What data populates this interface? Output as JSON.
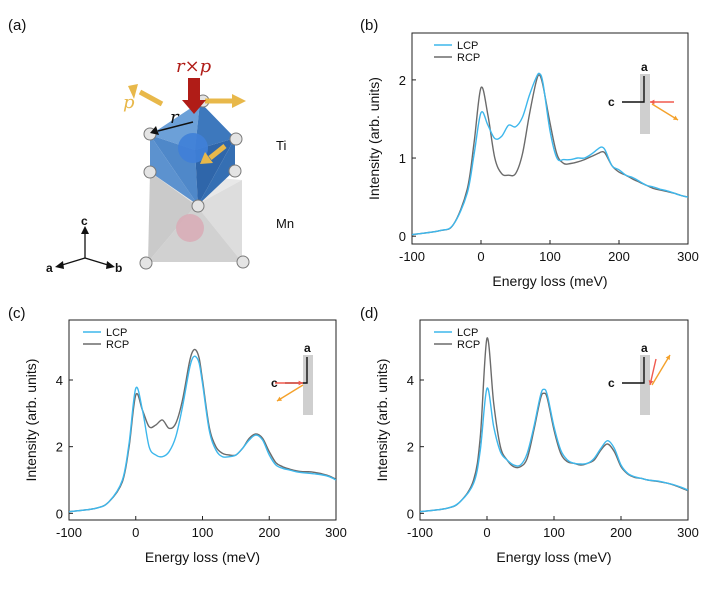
{
  "panel_a": {
    "label": "(a)",
    "vector_r_cross_p": "r×p",
    "vector_p": "p",
    "vector_r": "r",
    "atom_ti": "Ti",
    "atom_mn": "Mn",
    "axis_c": "c",
    "axis_a": "a",
    "axis_b": "b",
    "colors": {
      "octahedron": "#4a86c8",
      "arrow_red": "#b01c17",
      "arrow_yellow": "#e8b84a",
      "tetra": "#c4c4c4"
    }
  },
  "inset_labels": {
    "a": "a",
    "c": "c"
  },
  "colors": {
    "LCP": "#3db7ec",
    "RCP": "#6b6b6b",
    "inset_red": "#f05a4f",
    "inset_orange": "#f4a12b",
    "inset_bar": "#cfcfcf"
  },
  "chart_data": [
    {
      "panel": "(b)",
      "type": "line",
      "xlabel": "Energy loss (meV)",
      "ylabel": "Intensity (arb. units)",
      "xlim": [
        -100,
        300
      ],
      "ylim": [
        -0.1,
        2.6
      ],
      "xticks": [
        -100,
        0,
        100,
        200,
        300
      ],
      "yticks": [
        0,
        1,
        2
      ],
      "legend": [
        "LCP",
        "RCP"
      ],
      "legend_position": "top-left",
      "inset": "red arrow from c side toward a axis, orange arrow outward lower-right",
      "series": [
        {
          "name": "LCP",
          "x": [
            -100,
            -60,
            -40,
            -20,
            -10,
            0,
            10,
            20,
            30,
            40,
            50,
            60,
            70,
            80,
            85,
            90,
            100,
            110,
            120,
            130,
            140,
            150,
            160,
            170,
            175,
            180,
            190,
            200,
            210,
            220,
            230,
            240,
            250,
            260,
            270,
            280,
            290,
            300
          ],
          "y": [
            0.02,
            0.07,
            0.15,
            0.55,
            1.05,
            1.58,
            1.42,
            1.25,
            1.28,
            1.42,
            1.4,
            1.52,
            1.8,
            2.03,
            2.08,
            1.95,
            1.35,
            1.0,
            0.98,
            0.98,
            1.0,
            1.0,
            1.05,
            1.12,
            1.14,
            1.1,
            0.9,
            0.85,
            0.78,
            0.75,
            0.7,
            0.65,
            0.63,
            0.6,
            0.58,
            0.55,
            0.52,
            0.5
          ]
        },
        {
          "name": "RCP",
          "x": [
            -100,
            -60,
            -40,
            -20,
            -10,
            0,
            10,
            20,
            30,
            40,
            50,
            60,
            70,
            80,
            85,
            90,
            100,
            110,
            120,
            130,
            140,
            150,
            160,
            170,
            175,
            180,
            190,
            200,
            210,
            220,
            230,
            240,
            250,
            260,
            270,
            280,
            290,
            300
          ],
          "y": [
            0.02,
            0.07,
            0.15,
            0.6,
            1.2,
            1.9,
            1.55,
            1.0,
            0.8,
            0.78,
            0.8,
            1.05,
            1.55,
            1.98,
            2.06,
            1.92,
            1.45,
            1.05,
            0.93,
            0.93,
            0.95,
            0.98,
            1.02,
            1.06,
            1.08,
            1.06,
            0.9,
            0.82,
            0.78,
            0.73,
            0.69,
            0.65,
            0.61,
            0.59,
            0.57,
            0.55,
            0.52,
            0.5
          ]
        }
      ]
    },
    {
      "panel": "(c)",
      "type": "line",
      "xlabel": "Energy loss (meV)",
      "ylabel": "Intensity (arb. units)",
      "xlim": [
        -100,
        300
      ],
      "ylim": [
        -0.2,
        5.8
      ],
      "xticks": [
        -100,
        0,
        100,
        200,
        300
      ],
      "yticks": [
        0,
        2,
        4
      ],
      "legend": [
        "LCP",
        "RCP"
      ],
      "legend_position": "top-left",
      "inset": "red arrow from c side toward a axis, orange arrow outward lower-left",
      "series": [
        {
          "name": "LCP",
          "x": [
            -100,
            -60,
            -40,
            -20,
            -10,
            0,
            10,
            20,
            30,
            40,
            50,
            60,
            70,
            80,
            85,
            90,
            95,
            100,
            110,
            120,
            130,
            140,
            150,
            160,
            170,
            180,
            190,
            200,
            210,
            220,
            230,
            240,
            250,
            260,
            270,
            280,
            290,
            300
          ],
          "y": [
            0.05,
            0.15,
            0.35,
            1.0,
            2.1,
            3.75,
            3.1,
            2.0,
            1.75,
            1.7,
            1.85,
            2.3,
            3.2,
            4.3,
            4.65,
            4.7,
            4.5,
            3.9,
            2.5,
            1.9,
            1.7,
            1.7,
            1.75,
            1.95,
            2.2,
            2.35,
            2.2,
            1.75,
            1.45,
            1.35,
            1.3,
            1.25,
            1.22,
            1.2,
            1.18,
            1.15,
            1.1,
            1.0
          ]
        },
        {
          "name": "RCP",
          "x": [
            -100,
            -60,
            -40,
            -20,
            -10,
            0,
            10,
            20,
            30,
            40,
            50,
            60,
            70,
            80,
            85,
            90,
            95,
            100,
            110,
            120,
            130,
            140,
            150,
            160,
            170,
            180,
            190,
            200,
            210,
            220,
            230,
            240,
            250,
            260,
            270,
            280,
            290,
            300
          ],
          "y": [
            0.05,
            0.15,
            0.35,
            0.95,
            2.0,
            3.55,
            3.1,
            2.6,
            2.65,
            2.8,
            2.55,
            2.7,
            3.4,
            4.5,
            4.85,
            4.9,
            4.65,
            4.0,
            2.6,
            2.0,
            1.8,
            1.75,
            1.75,
            1.95,
            2.25,
            2.38,
            2.25,
            1.85,
            1.52,
            1.4,
            1.33,
            1.28,
            1.25,
            1.25,
            1.22,
            1.18,
            1.12,
            1.02
          ]
        }
      ]
    },
    {
      "panel": "(d)",
      "type": "line",
      "xlabel": "Energy loss (meV)",
      "ylabel": "Intensity (arb. units)",
      "xlim": [
        -100,
        300
      ],
      "ylim": [
        -0.2,
        5.8
      ],
      "xticks": [
        -100,
        0,
        100,
        200,
        300
      ],
      "yticks": [
        0,
        2,
        4
      ],
      "legend": [
        "LCP",
        "RCP"
      ],
      "legend_position": "top-left",
      "inset": "red arrow downward near a axis, orange arrow outward upper-right",
      "series": [
        {
          "name": "LCP",
          "x": [
            -100,
            -60,
            -40,
            -20,
            -10,
            0,
            10,
            20,
            30,
            40,
            50,
            60,
            70,
            80,
            85,
            90,
            100,
            110,
            120,
            130,
            140,
            150,
            160,
            170,
            180,
            190,
            200,
            210,
            220,
            230,
            240,
            250,
            260,
            270,
            280,
            290,
            300
          ],
          "y": [
            0.05,
            0.15,
            0.35,
            0.9,
            1.9,
            3.75,
            2.6,
            1.85,
            1.6,
            1.45,
            1.45,
            1.8,
            2.6,
            3.55,
            3.72,
            3.55,
            2.6,
            1.9,
            1.6,
            1.5,
            1.48,
            1.5,
            1.65,
            1.95,
            2.18,
            1.95,
            1.45,
            1.2,
            1.1,
            1.05,
            1.0,
            0.98,
            0.95,
            0.9,
            0.85,
            0.78,
            0.7
          ]
        },
        {
          "name": "RCP",
          "x": [
            -100,
            -60,
            -40,
            -20,
            -10,
            0,
            10,
            20,
            30,
            40,
            50,
            60,
            70,
            80,
            85,
            90,
            100,
            110,
            120,
            130,
            140,
            150,
            160,
            170,
            180,
            190,
            200,
            210,
            220,
            230,
            240,
            250,
            260,
            270,
            280,
            290,
            300
          ],
          "y": [
            0.05,
            0.15,
            0.35,
            1.0,
            2.3,
            5.25,
            3.3,
            2.0,
            1.6,
            1.4,
            1.4,
            1.65,
            2.5,
            3.45,
            3.6,
            3.45,
            2.5,
            1.8,
            1.55,
            1.5,
            1.45,
            1.5,
            1.6,
            1.9,
            2.08,
            1.85,
            1.4,
            1.18,
            1.08,
            1.05,
            1.0,
            0.97,
            0.94,
            0.9,
            0.84,
            0.76,
            0.68
          ]
        }
      ]
    }
  ]
}
